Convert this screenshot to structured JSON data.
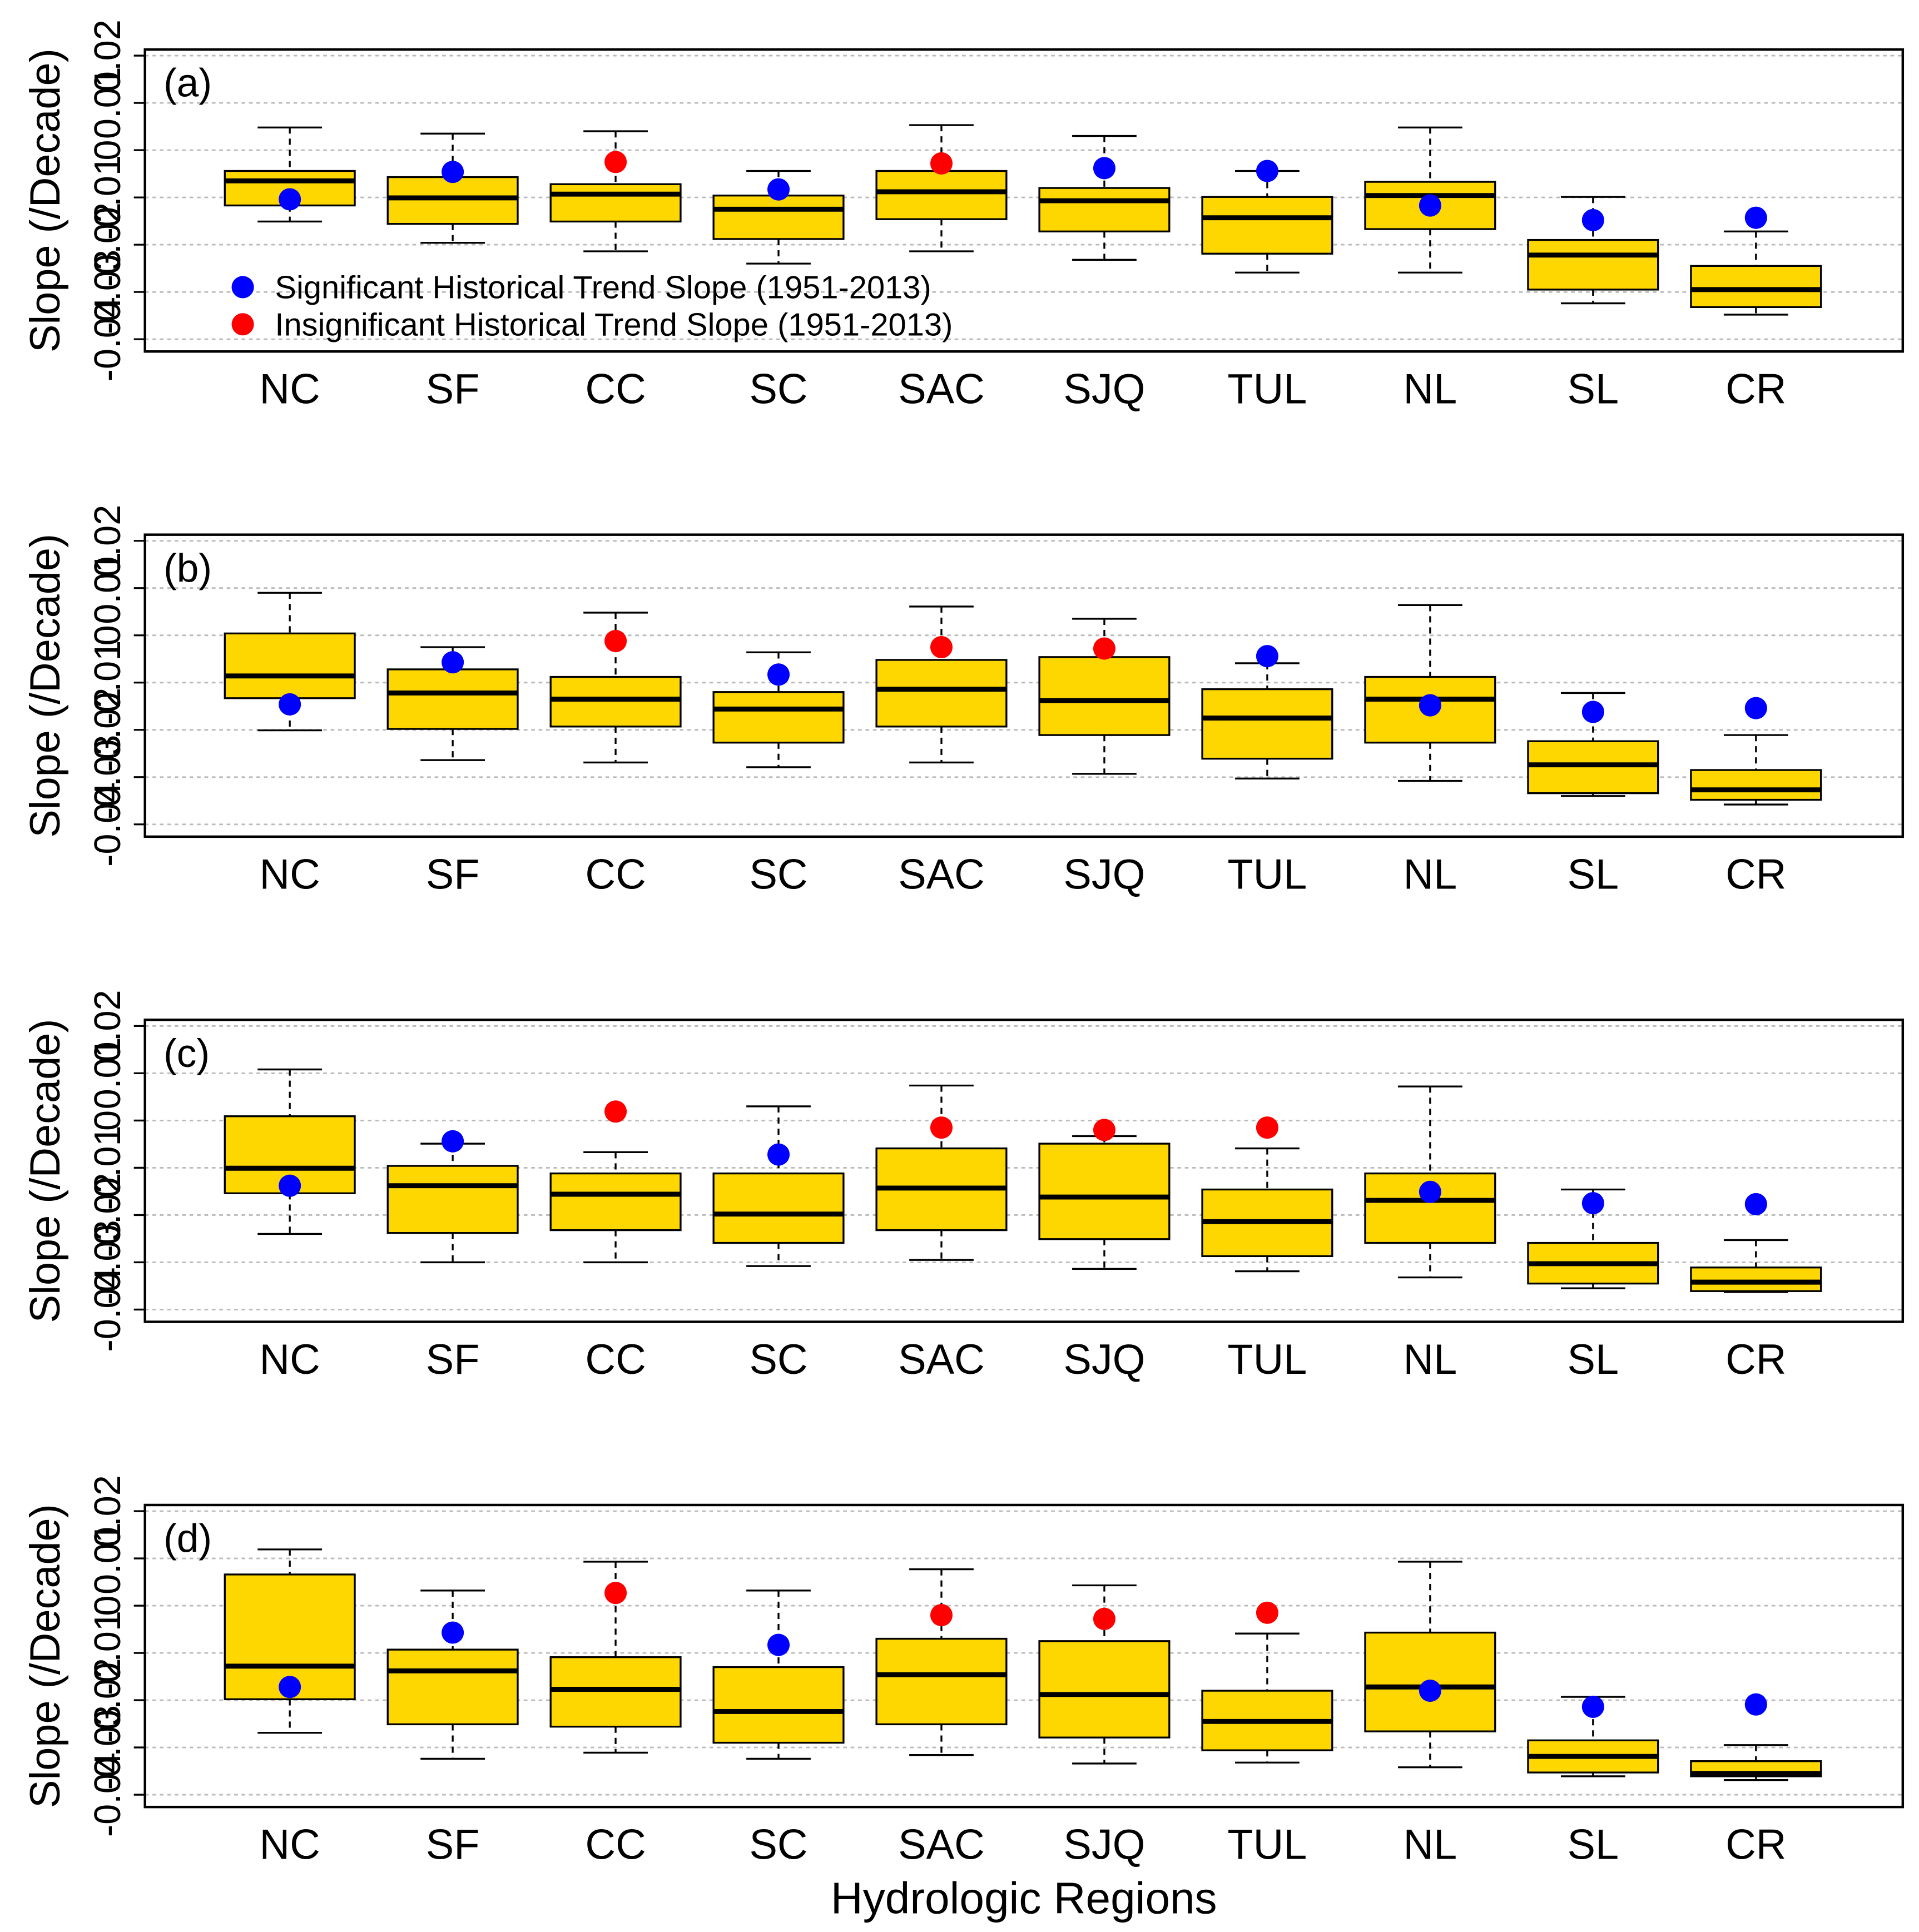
{
  "chart_data": [
    {
      "type": "box",
      "title": "(a)",
      "y_label": "Slope (/Decade)",
      "categories": [
        "NC",
        "SF",
        "CC",
        "SC",
        "SAC",
        "SJQ",
        "TUL",
        "NL",
        "SL",
        "CR"
      ],
      "whishi": [
        0.0048,
        0.0035,
        0.004,
        -0.0044,
        0.0053,
        0.003,
        -0.0044,
        0.0048,
        -0.0099,
        -0.0172
      ],
      "q3": [
        -0.0044,
        -0.0057,
        -0.0072,
        -0.0096,
        -0.0044,
        -0.008,
        -0.0099,
        -0.0067,
        -0.019,
        -0.0245
      ],
      "median": [
        -0.0065,
        -0.0101,
        -0.0093,
        -0.0125,
        -0.0088,
        -0.0107,
        -0.0143,
        -0.0096,
        -0.0222,
        -0.0295
      ],
      "q1": [
        -0.0117,
        -0.0156,
        -0.0151,
        -0.0188,
        -0.0146,
        -0.0172,
        -0.0219,
        -0.0167,
        -0.0295,
        -0.0332
      ],
      "whislo": [
        -0.0151,
        -0.0196,
        -0.0214,
        -0.024,
        -0.0214,
        -0.0232,
        -0.0259,
        -0.0259,
        -0.0324,
        -0.0348
      ],
      "box_color": "#ffd700",
      "series": [
        {
          "name": "Significant Historical Trend Slope (1951-2013)",
          "color": "#0000ff",
          "values": [
            -0.0104,
            -0.0046,
            null,
            -0.0083,
            null,
            -0.0038,
            -0.0044,
            -0.0117,
            -0.0148,
            -0.0143
          ]
        },
        {
          "name": "Insignificant Historical Trend Slope (1951-2013)",
          "color": "#ff0000",
          "values": [
            null,
            null,
            -0.0025,
            null,
            -0.0028,
            null,
            null,
            null,
            null,
            null
          ]
        }
      ],
      "ylim": [
        -0.0426,
        0.0213
      ],
      "yticks": [
        -0.04,
        -0.03,
        -0.02,
        -0.01,
        0,
        0.01,
        0.02
      ],
      "grid": true,
      "legend": "lower left"
    },
    {
      "type": "box",
      "title": "(b)",
      "y_label": "Slope (/Decade)",
      "categories": [
        "NC",
        "SF",
        "CC",
        "SC",
        "SAC",
        "SJQ",
        "TUL",
        "NL",
        "SL",
        "CR"
      ],
      "whishi": [
        0.009,
        -0.0025,
        0.0048,
        -0.0036,
        0.0061,
        0.0035,
        -0.0059,
        0.0064,
        -0.0122,
        -0.0211
      ],
      "q3": [
        0.0004,
        -0.0072,
        -0.0088,
        -0.012,
        -0.0052,
        -0.0046,
        -0.0114,
        -0.0088,
        -0.0224,
        -0.0285
      ],
      "median": [
        -0.0086,
        -0.0122,
        -0.0135,
        -0.0156,
        -0.0114,
        -0.0138,
        -0.0175,
        -0.0135,
        -0.0274,
        -0.0327
      ],
      "q1": [
        -0.0133,
        -0.0198,
        -0.0193,
        -0.0227,
        -0.0193,
        -0.0211,
        -0.0261,
        -0.0227,
        -0.0334,
        -0.0348
      ],
      "whislo": [
        -0.0201,
        -0.0264,
        -0.0269,
        -0.0279,
        -0.0269,
        -0.0293,
        -0.0303,
        -0.0308,
        -0.034,
        -0.0358
      ],
      "box_color": "#ffd700",
      "series": [
        {
          "color": "#0000ff",
          "values": [
            -0.0146,
            -0.0057,
            null,
            -0.0083,
            null,
            null,
            -0.0044,
            -0.0148,
            -0.0162,
            -0.0154
          ]
        },
        {
          "color": "#ff0000",
          "values": [
            null,
            null,
            -0.0012,
            null,
            -0.0025,
            -0.0028,
            null,
            null,
            null,
            null
          ]
        }
      ],
      "ylim": [
        -0.0426,
        0.0213
      ],
      "yticks": [
        -0.04,
        -0.03,
        -0.02,
        -0.01,
        0,
        0.01,
        0.02
      ],
      "grid": true
    },
    {
      "type": "box",
      "title": "(c)",
      "y_label": "Slope (/Decade)",
      "categories": [
        "NC",
        "SF",
        "CC",
        "SC",
        "SAC",
        "SJQ",
        "TUL",
        "NL",
        "SL",
        "CR"
      ],
      "whishi": [
        0.0108,
        -0.0049,
        -0.0067,
        0.003,
        0.0074,
        -0.0033,
        -0.0059,
        0.0072,
        -0.0146,
        -0.0253
      ],
      "q3": [
        0.0009,
        -0.0096,
        -0.0112,
        -0.0112,
        -0.0059,
        -0.0049,
        -0.0146,
        -0.0112,
        -0.0259,
        -0.0311
      ],
      "median": [
        -0.0101,
        -0.0138,
        -0.0156,
        -0.0198,
        -0.0143,
        -0.0162,
        -0.0214,
        -0.0169,
        -0.0303,
        -0.0342
      ],
      "q1": [
        -0.0154,
        -0.0238,
        -0.0232,
        -0.0259,
        -0.0232,
        -0.0251,
        -0.0287,
        -0.0259,
        -0.0345,
        -0.0361
      ],
      "whislo": [
        -0.024,
        -0.03,
        -0.03,
        -0.0308,
        -0.0295,
        -0.0314,
        -0.0319,
        -0.0332,
        -0.0355,
        -0.0363
      ],
      "box_color": "#ffd700",
      "series": [
        {
          "color": "#0000ff",
          "values": [
            -0.0138,
            -0.0044,
            null,
            -0.0072,
            null,
            null,
            null,
            -0.0151,
            -0.0175,
            -0.0177
          ]
        },
        {
          "color": "#ff0000",
          "values": [
            null,
            null,
            0.0019,
            null,
            -0.0015,
            -0.002,
            -0.0015,
            null,
            null,
            null
          ]
        }
      ],
      "ylim": [
        -0.0426,
        0.0213
      ],
      "yticks": [
        -0.04,
        -0.03,
        -0.02,
        -0.01,
        0,
        0.01,
        0.02
      ],
      "grid": true
    },
    {
      "type": "box",
      "title": "(d)",
      "y_label": "Slope (/Decade)",
      "x_label": "Hydrologic Regions",
      "categories": [
        "NC",
        "SF",
        "CC",
        "SC",
        "SAC",
        "SJQ",
        "TUL",
        "NL",
        "SL",
        "CR"
      ],
      "whishi": [
        0.0119,
        0.0032,
        0.0093,
        0.0032,
        0.0077,
        0.0043,
        -0.0059,
        0.0093,
        -0.0193,
        -0.0295
      ],
      "q3": [
        0.0066,
        -0.0093,
        -0.0109,
        -0.013,
        -0.007,
        -0.0075,
        -0.018,
        -0.0057,
        -0.0285,
        -0.0329
      ],
      "median": [
        -0.0128,
        -0.0138,
        -0.0177,
        -0.0224,
        -0.0146,
        -0.0188,
        -0.0245,
        -0.0172,
        -0.0319,
        -0.0355
      ],
      "q1": [
        -0.0198,
        -0.0251,
        -0.0256,
        -0.029,
        -0.0251,
        -0.0279,
        -0.0306,
        -0.0266,
        -0.0353,
        -0.0361
      ],
      "whislo": [
        -0.0269,
        -0.0324,
        -0.0311,
        -0.0324,
        -0.0316,
        -0.0334,
        -0.0332,
        -0.0342,
        -0.0361,
        -0.0369
      ],
      "box_color": "#ffd700",
      "series": [
        {
          "color": "#0000ff",
          "values": [
            -0.0172,
            -0.0057,
            null,
            -0.0083,
            null,
            null,
            null,
            -0.018,
            -0.0214,
            -0.0209
          ]
        },
        {
          "color": "#ff0000",
          "values": [
            null,
            null,
            0.0027,
            null,
            -0.002,
            -0.0028,
            -0.0015,
            null,
            null,
            null
          ]
        }
      ],
      "ylim": [
        -0.0426,
        0.0213
      ],
      "yticks": [
        -0.04,
        -0.03,
        -0.02,
        -0.01,
        0,
        0.01,
        0.02
      ],
      "grid": true
    }
  ]
}
